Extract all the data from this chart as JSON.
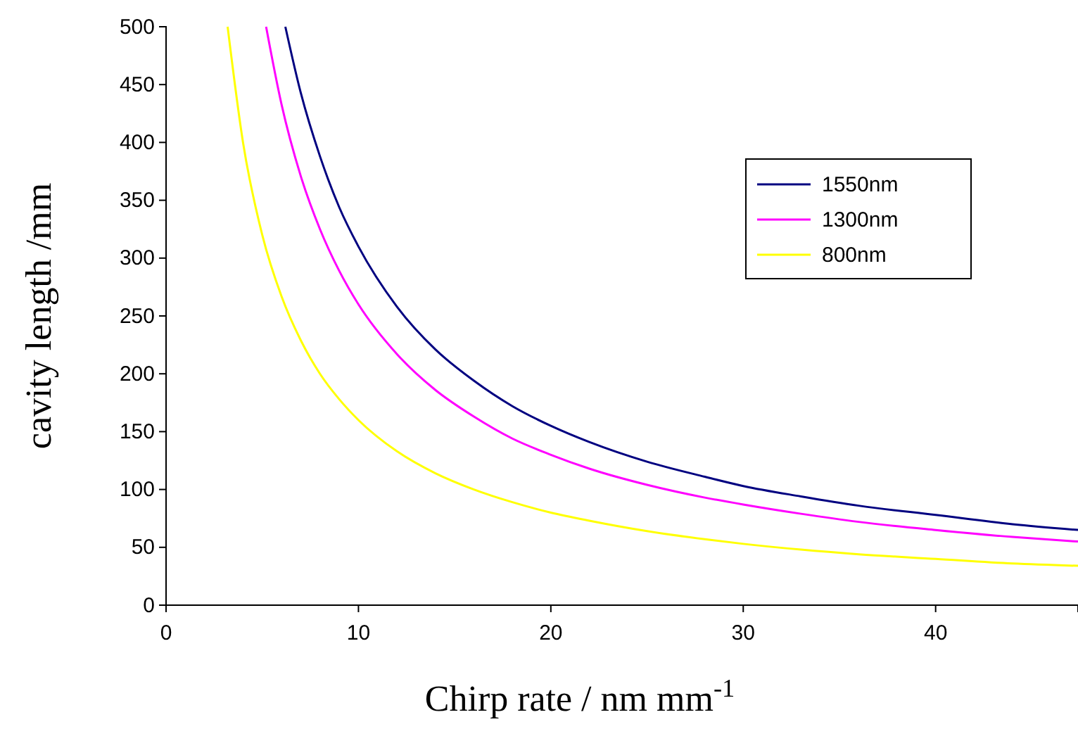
{
  "chart_data": {
    "type": "line",
    "xlabel": "Chirp rate / nm mm$^{-1}$",
    "ylabel": "cavity length /mm",
    "xlim": [
      0,
      47.4
    ],
    "ylim": [
      0,
      500
    ],
    "xticks": [
      0,
      10,
      20,
      30,
      40
    ],
    "yticks": [
      0,
      50,
      100,
      150,
      200,
      250,
      300,
      350,
      400,
      450,
      500
    ],
    "grid": false,
    "legend": "top right",
    "marker": "none",
    "line_style": "solid",
    "series": [
      {
        "name": "1550nm",
        "color": "#000080",
        "x": [
          6.2,
          7,
          8,
          9,
          10,
          12,
          14,
          16,
          18,
          20,
          22,
          25,
          28,
          30,
          33,
          36,
          40,
          44,
          47.4
        ],
        "values": [
          500,
          443,
          388,
          344,
          310,
          258,
          221,
          194,
          172,
          155,
          141,
          124,
          111,
          103,
          94,
          86,
          78,
          70,
          65
        ]
      },
      {
        "name": "1300nm",
        "color": "#ff00ff",
        "x": [
          5.2,
          6,
          7,
          8,
          9,
          10,
          12,
          14,
          16,
          18,
          20,
          22,
          25,
          28,
          30,
          33,
          36,
          40,
          44,
          47.4
        ],
        "values": [
          500,
          433,
          371,
          325,
          289,
          260,
          217,
          186,
          163,
          144,
          130,
          118,
          104,
          93,
          87,
          79,
          72,
          65,
          59,
          55
        ]
      },
      {
        "name": "800nm",
        "color": "#ffff00",
        "x": [
          3.2,
          4,
          5,
          6,
          7,
          8,
          9,
          10,
          12,
          14,
          16,
          18,
          20,
          22,
          25,
          28,
          30,
          33,
          36,
          40,
          44,
          47.4
        ],
        "values": [
          500,
          400,
          320,
          267,
          229,
          200,
          178,
          160,
          133,
          114,
          100,
          89,
          80,
          73,
          64,
          57,
          53,
          48,
          44,
          40,
          36,
          34
        ]
      }
    ]
  }
}
